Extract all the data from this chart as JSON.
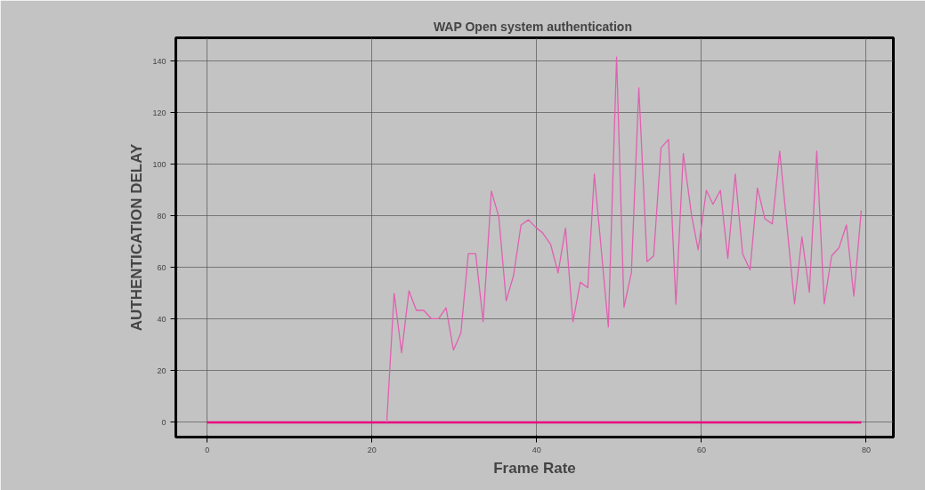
{
  "chart_data": {
    "type": "line",
    "title": "WAP  Open system authentication",
    "xlabel": "Frame Rate",
    "ylabel": "AUTHENTICATION DELAY",
    "xlim": [
      -3.8,
      83.3
    ],
    "ylim": [
      -5.7,
      149
    ],
    "xticks": [
      0,
      20,
      40,
      60,
      80
    ],
    "yticks": [
      0,
      20,
      40,
      60,
      80,
      100,
      120,
      140
    ],
    "grid": true,
    "marker": "none",
    "line_style": "solid",
    "series": [
      {
        "color": "#e8007e",
        "x": [
          0,
          79.4
        ],
        "values": [
          0,
          0
        ]
      },
      {
        "color": "#e060b0",
        "x": [
          21.8,
          22.7,
          23.6,
          24.5,
          25.4,
          26.3,
          27.2,
          28.1,
          29.0,
          29.9,
          30.8,
          31.7,
          32.6,
          33.5,
          34.5,
          35.4,
          36.3,
          37.2,
          38.1,
          39.0,
          39.9,
          40.7,
          41.7,
          42.6,
          43.5,
          44.4,
          45.3,
          46.2,
          47.0,
          48.7,
          49.7,
          50.6,
          51.5,
          52.4,
          53.4,
          54.2,
          55.1,
          56.0,
          56.9,
          57.8,
          58.8,
          59.6,
          60.6,
          61.4,
          62.3,
          63.2,
          64.1,
          65.0,
          65.9,
          66.8,
          67.7,
          68.6,
          69.5,
          71.3,
          72.2,
          73.1,
          74.0,
          74.9,
          75.8,
          76.7,
          77.6,
          78.5,
          79.4
        ],
        "values": [
          0,
          50,
          27,
          51,
          43.4,
          43.4,
          40.2,
          40.2,
          44.4,
          28,
          34.6,
          65.3,
          65.3,
          39,
          89.6,
          79.7,
          47.1,
          57,
          76.5,
          78.5,
          75.5,
          73.5,
          68.9,
          57.9,
          75.3,
          39,
          54.3,
          52.2,
          96.2,
          37,
          141.5,
          44.6,
          58.1,
          129.6,
          62.3,
          64.5,
          106.4,
          109.6,
          45.8,
          104.2,
          80.3,
          66.9,
          89.9,
          84.5,
          89.9,
          63.5,
          96.2,
          65.3,
          59.1,
          90.8,
          78.9,
          76.9,
          105.1,
          45.9,
          71.9,
          50.4,
          105.1,
          45.9,
          64.5,
          67.7,
          76.5,
          48.9,
          82.1
        ]
      }
    ]
  }
}
